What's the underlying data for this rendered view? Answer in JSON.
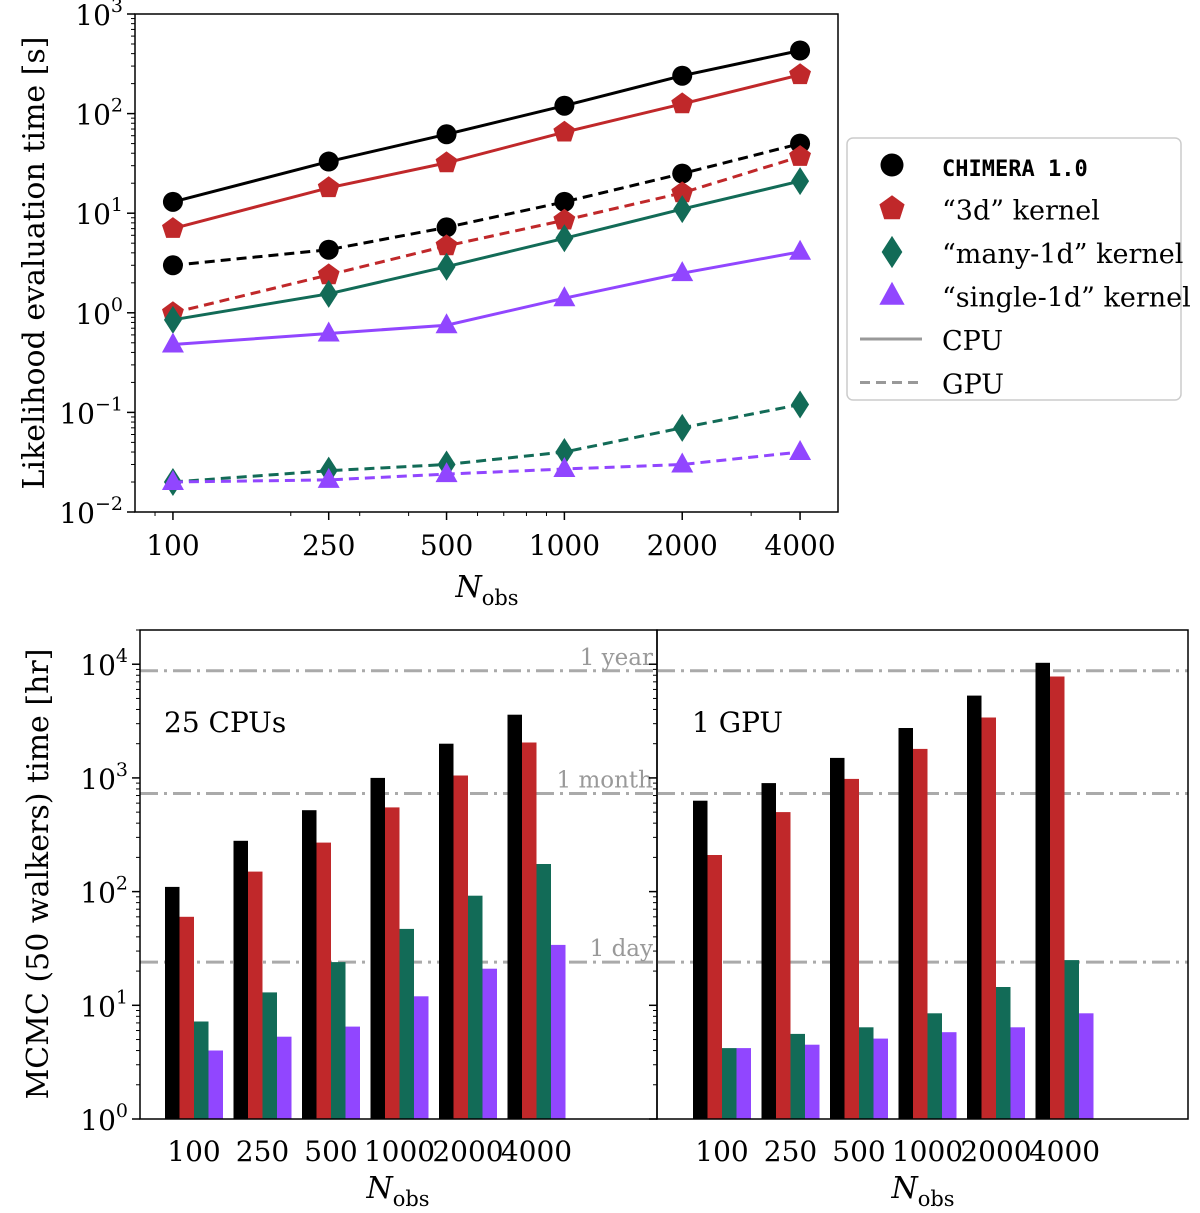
{
  "colors": {
    "chimera": "#000000",
    "kernel_3d": "#c0282a",
    "many_1d": "#126b57",
    "single_1d": "#9146ff",
    "reference_line": "#aaaaaa",
    "legend_line": "#999999"
  },
  "chart_data": [
    {
      "type": "line",
      "ylabel": "Likelihood evaluation time [s]",
      "xlabel": "N",
      "xlabel_subscript": "obs",
      "xscale": "log",
      "yscale": "log",
      "x": [
        100,
        250,
        500,
        1000,
        2000,
        4000
      ],
      "xtick_labels": [
        "100",
        "250",
        "500",
        "1000",
        "2000",
        "4000"
      ],
      "ylim": [
        0.01,
        1000
      ],
      "ytick_exponents": [
        "−2",
        "−1",
        "0",
        "1",
        "2",
        "3"
      ],
      "grid": false,
      "legend_placement": "outside-right",
      "legend": [
        {
          "label": "CHIMERA 1.0",
          "marker": "circle",
          "monospace": true
        },
        {
          "label": "“3d” kernel",
          "marker": "pentagon"
        },
        {
          "label": "“many-1d” kernel",
          "marker": "diamond"
        },
        {
          "label": "“single-1d” kernel",
          "marker": "triangle"
        },
        {
          "label": "CPU",
          "style": "solid"
        },
        {
          "label": "GPU",
          "style": "dashed"
        }
      ],
      "series": [
        {
          "kernel": "chimera",
          "device": "CPU",
          "values": [
            13,
            33,
            62,
            120,
            240,
            430
          ]
        },
        {
          "kernel": "kernel_3d",
          "device": "CPU",
          "values": [
            7,
            18,
            32,
            65,
            125,
            245
          ]
        },
        {
          "kernel": "chimera",
          "device": "GPU",
          "values": [
            3,
            4.3,
            7.2,
            13,
            25,
            50
          ]
        },
        {
          "kernel": "kernel_3d",
          "device": "GPU",
          "values": [
            1,
            2.4,
            4.7,
            8.5,
            16,
            37
          ]
        },
        {
          "kernel": "many_1d",
          "device": "CPU",
          "values": [
            0.85,
            1.55,
            2.9,
            5.6,
            11,
            21
          ]
        },
        {
          "kernel": "single_1d",
          "device": "CPU",
          "values": [
            0.48,
            0.62,
            0.75,
            1.4,
            2.5,
            4.1
          ]
        },
        {
          "kernel": "many_1d",
          "device": "GPU",
          "values": [
            0.02,
            0.026,
            0.03,
            0.04,
            0.07,
            0.12
          ]
        },
        {
          "kernel": "single_1d",
          "device": "GPU",
          "values": [
            0.02,
            0.021,
            0.024,
            0.027,
            0.03,
            0.04
          ]
        }
      ]
    },
    {
      "type": "bar",
      "panel_label": "25 CPUs",
      "ylabel": "MCMC (50 walkers) time [hr]",
      "xlabel": "N",
      "xlabel_subscript": "obs",
      "yscale": "log",
      "ylim": [
        1,
        20000
      ],
      "ytick_exponents": [
        "0",
        "1",
        "2",
        "3",
        "4"
      ],
      "categories": [
        "100",
        "250",
        "500",
        "1000",
        "2000",
        "4000"
      ],
      "reference_lines": [
        {
          "label": "1 year",
          "value": 8760
        },
        {
          "label": "1 month",
          "value": 730
        },
        {
          "label": "1 day",
          "value": 24
        }
      ],
      "series": [
        {
          "kernel": "chimera",
          "values": [
            110,
            280,
            520,
            1000,
            2000,
            3600
          ]
        },
        {
          "kernel": "kernel_3d",
          "values": [
            60,
            150,
            270,
            550,
            1050,
            2050
          ]
        },
        {
          "kernel": "many_1d",
          "values": [
            7.2,
            13,
            24,
            47,
            92,
            175
          ]
        },
        {
          "kernel": "single_1d",
          "values": [
            4,
            5.3,
            6.5,
            12,
            21,
            34
          ]
        }
      ]
    },
    {
      "type": "bar",
      "panel_label": "1 GPU",
      "xlabel": "N",
      "xlabel_subscript": "obs",
      "yscale": "log",
      "ylim": [
        1,
        20000
      ],
      "categories": [
        "100",
        "250",
        "500",
        "1000",
        "2000",
        "4000"
      ],
      "reference_lines": [
        {
          "label": "1 year",
          "value": 8760
        },
        {
          "label": "1 month",
          "value": 730
        },
        {
          "label": "1 day",
          "value": 24
        }
      ],
      "series": [
        {
          "kernel": "chimera",
          "values": [
            630,
            900,
            1500,
            2750,
            5300,
            10300
          ]
        },
        {
          "kernel": "kernel_3d",
          "values": [
            210,
            500,
            980,
            1800,
            3400,
            7800
          ]
        },
        {
          "kernel": "many_1d",
          "values": [
            4.2,
            5.6,
            6.4,
            8.5,
            14.5,
            25
          ]
        },
        {
          "kernel": "single_1d",
          "values": [
            4.2,
            4.5,
            5.1,
            5.8,
            6.4,
            8.5
          ]
        }
      ]
    }
  ]
}
